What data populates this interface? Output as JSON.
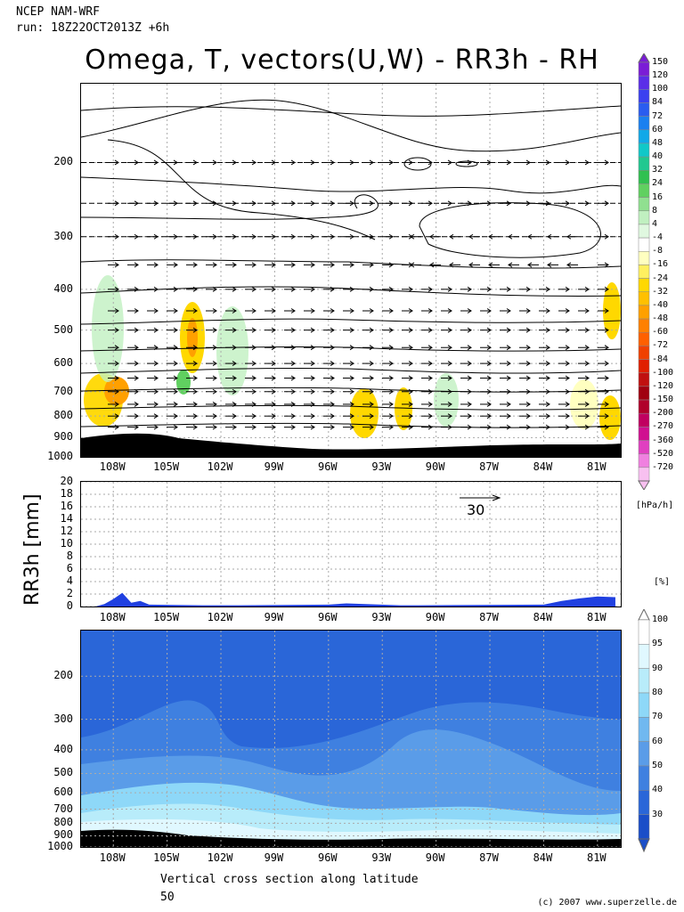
{
  "header": {
    "line1": "NCEP NAM-WRF",
    "line2": "run: 18Z22OCT2013Z +6h"
  },
  "title": "Omega, T, vectors(U,W) - RR3h - RH",
  "footer": {
    "line1": "Vertical cross section along latitude",
    "line2": "50",
    "credit": "(c) 2007 www.superzelle.de"
  },
  "x_ticks": [
    "108W",
    "105W",
    "102W",
    "99W",
    "96W",
    "93W",
    "90W",
    "87W",
    "84W",
    "81W"
  ],
  "chart_data": [
    {
      "type": "heatmap",
      "name": "omega-cross-section",
      "title": "Omega, T, vectors(U,W)",
      "y_ticks": [
        "200",
        "300",
        "400",
        "500",
        "600",
        "700",
        "800",
        "900",
        "1000"
      ],
      "ylim": [
        1000,
        130
      ],
      "colorbar": {
        "unit": "[hPa/h]",
        "levels": [
          "150",
          "120",
          "100",
          "84",
          "72",
          "60",
          "48",
          "40",
          "32",
          "24",
          "16",
          "8",
          "4",
          "-4",
          "-8",
          "-16",
          "-24",
          "-32",
          "-40",
          "-48",
          "-60",
          "-72",
          "-84",
          "-100",
          "-120",
          "-150",
          "-200",
          "-270",
          "-360",
          "-520",
          "-720"
        ],
        "colors": [
          "#7a1cd6",
          "#5a2ee8",
          "#3a40f0",
          "#2a5cf0",
          "#1a80f0",
          "#10a8e8",
          "#10c8c8",
          "#20c890",
          "#30c050",
          "#60d060",
          "#90e090",
          "#c0f0c0",
          "#e0f8e0",
          "#ffffff",
          "#ffffc0",
          "#fff060",
          "#ffd800",
          "#ffc000",
          "#ffa000",
          "#ff8000",
          "#ff6000",
          "#f04000",
          "#e02000",
          "#c01010",
          "#a00010",
          "#b0002a",
          "#c00060",
          "#d01090",
          "#e040c0",
          "#f080e0",
          "#f8c0f0"
        ]
      },
      "reference_vector": "30"
    },
    {
      "type": "area",
      "name": "rr3h-precipitation",
      "ylabel": "RR3h [mm]",
      "y_ticks": [
        "20",
        "18",
        "16",
        "14",
        "12",
        "10",
        "8",
        "6",
        "4",
        "2",
        "0"
      ],
      "ylim": [
        0,
        20
      ],
      "unit": "[%]",
      "series": [
        {
          "values_lon": [
            -109,
            -108.5,
            -108,
            -107.5,
            -107,
            -106.5,
            -106,
            -103,
            -101,
            -96,
            -95,
            -92,
            -91,
            -84,
            -83,
            -82,
            -81,
            -80
          ],
          "values": [
            0,
            0.4,
            1.2,
            2.2,
            0.6,
            0.9,
            0.3,
            0.2,
            0.2,
            0.3,
            0.5,
            0.2,
            0.2,
            0.3,
            0.9,
            1.3,
            1.6,
            1.5
          ]
        }
      ]
    },
    {
      "type": "heatmap",
      "name": "relative-humidity",
      "y_ticks": [
        "200",
        "300",
        "400",
        "500",
        "600",
        "700",
        "800",
        "900",
        "1000"
      ],
      "ylim": [
        1000,
        130
      ],
      "colorbar": {
        "levels": [
          "100",
          "95",
          "90",
          "80",
          "70",
          "60",
          "50",
          "40",
          "30"
        ],
        "colors": [
          "#ffffff",
          "#e0f8ff",
          "#b8ecfa",
          "#8ed8f8",
          "#70b8f0",
          "#5a9ce8",
          "#3f80e0",
          "#2a66d8",
          "#1a4ec8"
        ]
      }
    }
  ]
}
